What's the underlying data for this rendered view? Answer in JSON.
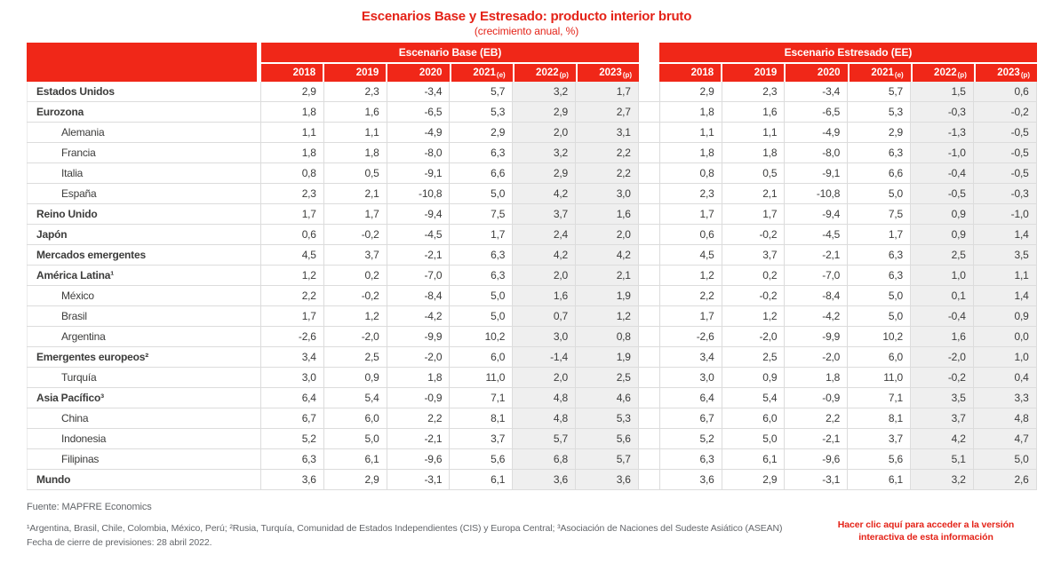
{
  "colors": {
    "brand_red": "#f02718",
    "title_red": "#e42318",
    "shaded_column": "#efefef",
    "gridline": "#dcdcdc",
    "text_dark": "#3c3c3b",
    "footer_gray": "#63666a"
  },
  "chart_data": {
    "type": "table",
    "title": "Escenarios Base y Estresado: producto interior bruto",
    "subtitle": "(crecimiento anual, %)",
    "scenario_groups": [
      {
        "id": "eb",
        "label": "Escenario Base (EB)"
      },
      {
        "id": "ee",
        "label": "Escenario Estresado (EE)"
      }
    ],
    "years": [
      "2018",
      "2019",
      "2020",
      "2021(e)",
      "2022(p)",
      "2023(p)"
    ],
    "shaded_year_indexes": [
      4,
      5
    ],
    "rows": [
      {
        "label": "Estados Unidos",
        "bold": true,
        "indent": false,
        "eb": [
          "2,9",
          "2,3",
          "-3,4",
          "5,7",
          "3,2",
          "1,7"
        ],
        "ee": [
          "2,9",
          "2,3",
          "-3,4",
          "5,7",
          "1,5",
          "0,6"
        ]
      },
      {
        "label": "Eurozona",
        "bold": true,
        "indent": false,
        "eb": [
          "1,8",
          "1,6",
          "-6,5",
          "5,3",
          "2,9",
          "2,7"
        ],
        "ee": [
          "1,8",
          "1,6",
          "-6,5",
          "5,3",
          "-0,3",
          "-0,2"
        ]
      },
      {
        "label": "Alemania",
        "bold": false,
        "indent": true,
        "eb": [
          "1,1",
          "1,1",
          "-4,9",
          "2,9",
          "2,0",
          "3,1"
        ],
        "ee": [
          "1,1",
          "1,1",
          "-4,9",
          "2,9",
          "-1,3",
          "-0,5"
        ]
      },
      {
        "label": "Francia",
        "bold": false,
        "indent": true,
        "eb": [
          "1,8",
          "1,8",
          "-8,0",
          "6,3",
          "3,2",
          "2,2"
        ],
        "ee": [
          "1,8",
          "1,8",
          "-8,0",
          "6,3",
          "-1,0",
          "-0,5"
        ]
      },
      {
        "label": "Italia",
        "bold": false,
        "indent": true,
        "eb": [
          "0,8",
          "0,5",
          "-9,1",
          "6,6",
          "2,9",
          "2,2"
        ],
        "ee": [
          "0,8",
          "0,5",
          "-9,1",
          "6,6",
          "-0,4",
          "-0,5"
        ]
      },
      {
        "label": "España",
        "bold": false,
        "indent": true,
        "eb": [
          "2,3",
          "2,1",
          "-10,8",
          "5,0",
          "4,2",
          "3,0"
        ],
        "ee": [
          "2,3",
          "2,1",
          "-10,8",
          "5,0",
          "-0,5",
          "-0,3"
        ]
      },
      {
        "label": "Reino Unido",
        "bold": true,
        "indent": false,
        "eb": [
          "1,7",
          "1,7",
          "-9,4",
          "7,5",
          "3,7",
          "1,6"
        ],
        "ee": [
          "1,7",
          "1,7",
          "-9,4",
          "7,5",
          "0,9",
          "-1,0"
        ]
      },
      {
        "label": "Japón",
        "bold": true,
        "indent": false,
        "eb": [
          "0,6",
          "-0,2",
          "-4,5",
          "1,7",
          "2,4",
          "2,0"
        ],
        "ee": [
          "0,6",
          "-0,2",
          "-4,5",
          "1,7",
          "0,9",
          "1,4"
        ]
      },
      {
        "label": "Mercados emergentes",
        "bold": true,
        "indent": false,
        "eb": [
          "4,5",
          "3,7",
          "-2,1",
          "6,3",
          "4,2",
          "4,2"
        ],
        "ee": [
          "4,5",
          "3,7",
          "-2,1",
          "6,3",
          "2,5",
          "3,5"
        ]
      },
      {
        "label": "América Latina¹",
        "bold": true,
        "indent": false,
        "eb": [
          "1,2",
          "0,2",
          "-7,0",
          "6,3",
          "2,0",
          "2,1"
        ],
        "ee": [
          "1,2",
          "0,2",
          "-7,0",
          "6,3",
          "1,0",
          "1,1"
        ]
      },
      {
        "label": "México",
        "bold": false,
        "indent": true,
        "eb": [
          "2,2",
          "-0,2",
          "-8,4",
          "5,0",
          "1,6",
          "1,9"
        ],
        "ee": [
          "2,2",
          "-0,2",
          "-8,4",
          "5,0",
          "0,1",
          "1,4"
        ]
      },
      {
        "label": "Brasil",
        "bold": false,
        "indent": true,
        "eb": [
          "1,7",
          "1,2",
          "-4,2",
          "5,0",
          "0,7",
          "1,2"
        ],
        "ee": [
          "1,7",
          "1,2",
          "-4,2",
          "5,0",
          "-0,4",
          "0,9"
        ]
      },
      {
        "label": "Argentina",
        "bold": false,
        "indent": true,
        "eb": [
          "-2,6",
          "-2,0",
          "-9,9",
          "10,2",
          "3,0",
          "0,8"
        ],
        "ee": [
          "-2,6",
          "-2,0",
          "-9,9",
          "10,2",
          "1,6",
          "0,0"
        ]
      },
      {
        "label": "Emergentes europeos²",
        "bold": true,
        "indent": false,
        "eb": [
          "3,4",
          "2,5",
          "-2,0",
          "6,0",
          "-1,4",
          "1,9"
        ],
        "ee": [
          "3,4",
          "2,5",
          "-2,0",
          "6,0",
          "-2,0",
          "1,0"
        ]
      },
      {
        "label": "Turquía",
        "bold": false,
        "indent": true,
        "eb": [
          "3,0",
          "0,9",
          "1,8",
          "11,0",
          "2,0",
          "2,5"
        ],
        "ee": [
          "3,0",
          "0,9",
          "1,8",
          "11,0",
          "-0,2",
          "0,4"
        ]
      },
      {
        "label": "Asia Pacífico³",
        "bold": true,
        "indent": false,
        "eb": [
          "6,4",
          "5,4",
          "-0,9",
          "7,1",
          "4,8",
          "4,6"
        ],
        "ee": [
          "6,4",
          "5,4",
          "-0,9",
          "7,1",
          "3,5",
          "3,3"
        ]
      },
      {
        "label": "China",
        "bold": false,
        "indent": true,
        "eb": [
          "6,7",
          "6,0",
          "2,2",
          "8,1",
          "4,8",
          "5,3"
        ],
        "ee": [
          "6,7",
          "6,0",
          "2,2",
          "8,1",
          "3,7",
          "4,8"
        ]
      },
      {
        "label": "Indonesia",
        "bold": false,
        "indent": true,
        "eb": [
          "5,2",
          "5,0",
          "-2,1",
          "3,7",
          "5,7",
          "5,6"
        ],
        "ee": [
          "5,2",
          "5,0",
          "-2,1",
          "3,7",
          "4,2",
          "4,7"
        ]
      },
      {
        "label": "Filipinas",
        "bold": false,
        "indent": true,
        "eb": [
          "6,3",
          "6,1",
          "-9,6",
          "5,6",
          "6,8",
          "5,7"
        ],
        "ee": [
          "6,3",
          "6,1",
          "-9,6",
          "5,6",
          "5,1",
          "5,0"
        ]
      },
      {
        "label": "Mundo",
        "bold": true,
        "indent": false,
        "eb": [
          "3,6",
          "2,9",
          "-3,1",
          "6,1",
          "3,6",
          "3,6"
        ],
        "ee": [
          "3,6",
          "2,9",
          "-3,1",
          "6,1",
          "3,2",
          "2,6"
        ]
      }
    ]
  },
  "footer": {
    "source": "Fuente: MAPFRE Economics",
    "footnote_line": "¹Argentina, Brasil, Chile, Colombia, México, Perú; ²Rusia, Turquía, Comunidad de Estados Independientes (CIS) y Europa Central; ³Asociación de Naciones del Sudeste Asiático (ASEAN)",
    "closing_line": "Fecha de cierre de previsiones: 28 abril 2022.",
    "interactive_link": {
      "line1": "Hacer clic aquí para acceder a la versión",
      "line2": "interactiva de esta información"
    }
  }
}
